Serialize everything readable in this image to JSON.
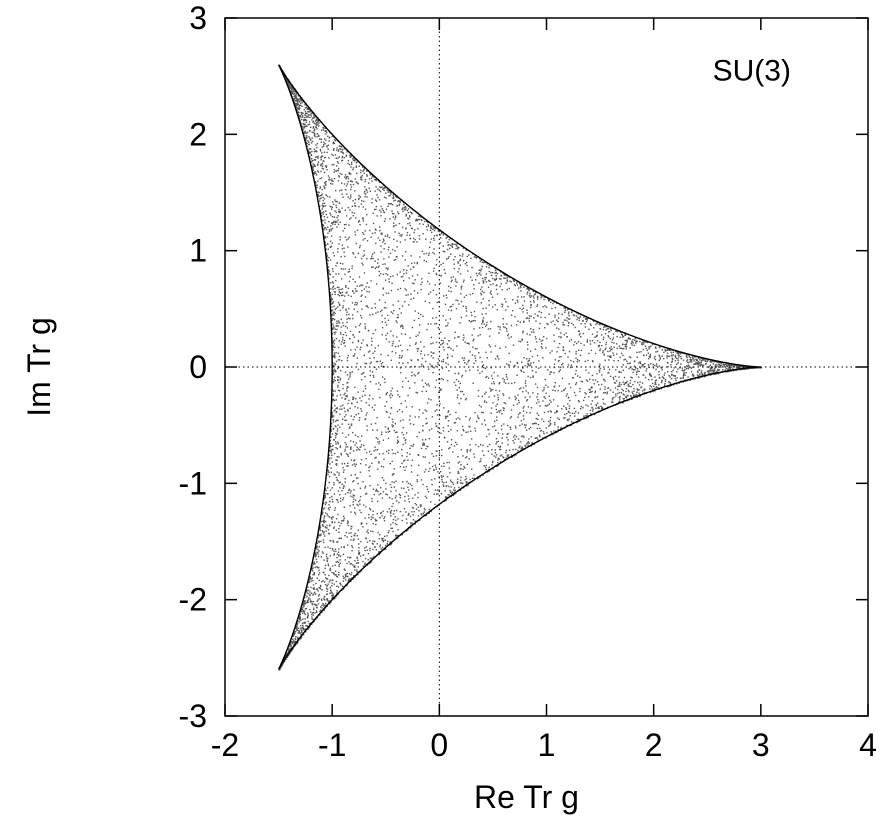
{
  "chart_data": {
    "type": "scatter",
    "title": "",
    "xlabel": "Re Tr g",
    "ylabel": "Im Tr g",
    "xlim": [
      -2,
      4
    ],
    "ylim": [
      -3,
      3
    ],
    "x_ticks": [
      -2,
      -1,
      0,
      1,
      2,
      3,
      4
    ],
    "y_ticks": [
      -3,
      -2,
      -1,
      0,
      1,
      2,
      3
    ],
    "x_tick_labels": [
      "-2",
      "-1",
      "0",
      "1",
      "2",
      "3",
      "4"
    ],
    "y_tick_labels": [
      "-3",
      "-2",
      "-1",
      "0",
      "1",
      "2",
      "3"
    ],
    "grid": false,
    "zero_lines": "dotted",
    "annotations": [
      {
        "text": "SU(3)",
        "x": 2.55,
        "y": 2.55
      }
    ],
    "boundary": {
      "description_curve": "x = 2cos(t) + cos(2t), y = 2sin(t) - sin(2t)",
      "cusps": [
        [
          3,
          0
        ],
        [
          -1.5,
          2.598
        ],
        [
          -1.5,
          -2.598
        ]
      ]
    },
    "point_color": "#555555",
    "boundary_color": "#000000"
  }
}
